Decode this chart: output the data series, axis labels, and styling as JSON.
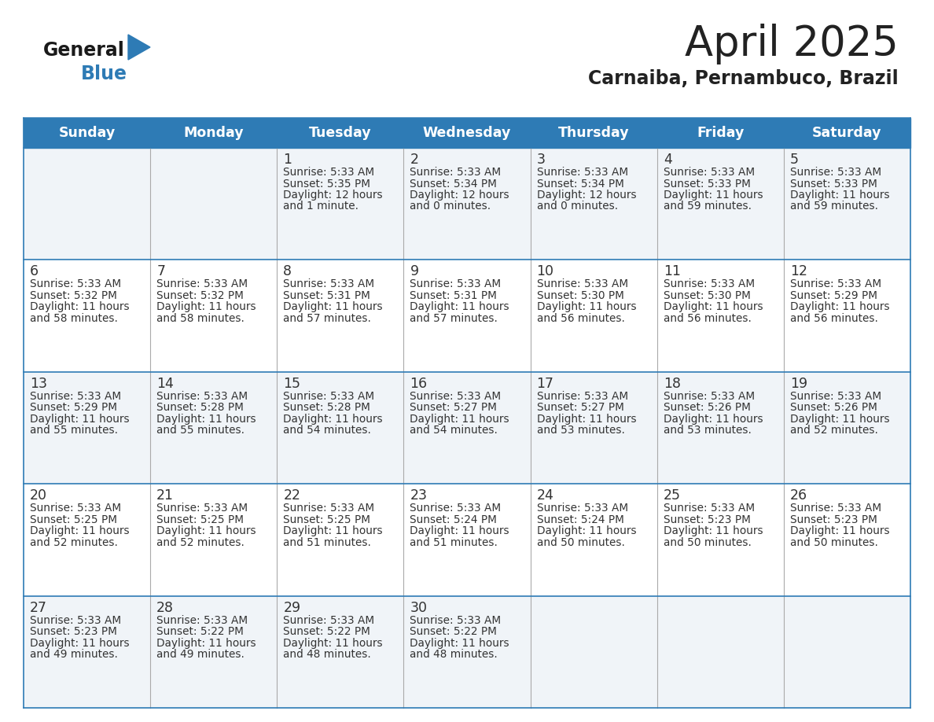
{
  "title": "April 2025",
  "subtitle": "Carnaiba, Pernambuco, Brazil",
  "days_of_week": [
    "Sunday",
    "Monday",
    "Tuesday",
    "Wednesday",
    "Thursday",
    "Friday",
    "Saturday"
  ],
  "header_bg": "#2E7BB5",
  "header_text_color": "#FFFFFF",
  "row_bg_odd": "#F0F4F8",
  "row_bg_even": "#FFFFFF",
  "border_color": "#2E7BB5",
  "sep_color": "#AAAAAA",
  "text_color": "#333333",
  "title_color": "#222222",
  "subtitle_color": "#222222",
  "logo_general_color": "#1a1a1a",
  "logo_blue_color": "#2E7BB5",
  "logo_triangle_color": "#2E7BB5",
  "calendar_data": [
    [
      null,
      null,
      {
        "day": 1,
        "sunrise": "5:33 AM",
        "sunset": "5:35 PM",
        "daylight": "12 hours and 1 minute."
      },
      {
        "day": 2,
        "sunrise": "5:33 AM",
        "sunset": "5:34 PM",
        "daylight": "12 hours and 0 minutes."
      },
      {
        "day": 3,
        "sunrise": "5:33 AM",
        "sunset": "5:34 PM",
        "daylight": "12 hours and 0 minutes."
      },
      {
        "day": 4,
        "sunrise": "5:33 AM",
        "sunset": "5:33 PM",
        "daylight": "11 hours and 59 minutes."
      },
      {
        "day": 5,
        "sunrise": "5:33 AM",
        "sunset": "5:33 PM",
        "daylight": "11 hours and 59 minutes."
      }
    ],
    [
      {
        "day": 6,
        "sunrise": "5:33 AM",
        "sunset": "5:32 PM",
        "daylight": "11 hours and 58 minutes."
      },
      {
        "day": 7,
        "sunrise": "5:33 AM",
        "sunset": "5:32 PM",
        "daylight": "11 hours and 58 minutes."
      },
      {
        "day": 8,
        "sunrise": "5:33 AM",
        "sunset": "5:31 PM",
        "daylight": "11 hours and 57 minutes."
      },
      {
        "day": 9,
        "sunrise": "5:33 AM",
        "sunset": "5:31 PM",
        "daylight": "11 hours and 57 minutes."
      },
      {
        "day": 10,
        "sunrise": "5:33 AM",
        "sunset": "5:30 PM",
        "daylight": "11 hours and 56 minutes."
      },
      {
        "day": 11,
        "sunrise": "5:33 AM",
        "sunset": "5:30 PM",
        "daylight": "11 hours and 56 minutes."
      },
      {
        "day": 12,
        "sunrise": "5:33 AM",
        "sunset": "5:29 PM",
        "daylight": "11 hours and 56 minutes."
      }
    ],
    [
      {
        "day": 13,
        "sunrise": "5:33 AM",
        "sunset": "5:29 PM",
        "daylight": "11 hours and 55 minutes."
      },
      {
        "day": 14,
        "sunrise": "5:33 AM",
        "sunset": "5:28 PM",
        "daylight": "11 hours and 55 minutes."
      },
      {
        "day": 15,
        "sunrise": "5:33 AM",
        "sunset": "5:28 PM",
        "daylight": "11 hours and 54 minutes."
      },
      {
        "day": 16,
        "sunrise": "5:33 AM",
        "sunset": "5:27 PM",
        "daylight": "11 hours and 54 minutes."
      },
      {
        "day": 17,
        "sunrise": "5:33 AM",
        "sunset": "5:27 PM",
        "daylight": "11 hours and 53 minutes."
      },
      {
        "day": 18,
        "sunrise": "5:33 AM",
        "sunset": "5:26 PM",
        "daylight": "11 hours and 53 minutes."
      },
      {
        "day": 19,
        "sunrise": "5:33 AM",
        "sunset": "5:26 PM",
        "daylight": "11 hours and 52 minutes."
      }
    ],
    [
      {
        "day": 20,
        "sunrise": "5:33 AM",
        "sunset": "5:25 PM",
        "daylight": "11 hours and 52 minutes."
      },
      {
        "day": 21,
        "sunrise": "5:33 AM",
        "sunset": "5:25 PM",
        "daylight": "11 hours and 52 minutes."
      },
      {
        "day": 22,
        "sunrise": "5:33 AM",
        "sunset": "5:25 PM",
        "daylight": "11 hours and 51 minutes."
      },
      {
        "day": 23,
        "sunrise": "5:33 AM",
        "sunset": "5:24 PM",
        "daylight": "11 hours and 51 minutes."
      },
      {
        "day": 24,
        "sunrise": "5:33 AM",
        "sunset": "5:24 PM",
        "daylight": "11 hours and 50 minutes."
      },
      {
        "day": 25,
        "sunrise": "5:33 AM",
        "sunset": "5:23 PM",
        "daylight": "11 hours and 50 minutes."
      },
      {
        "day": 26,
        "sunrise": "5:33 AM",
        "sunset": "5:23 PM",
        "daylight": "11 hours and 50 minutes."
      }
    ],
    [
      {
        "day": 27,
        "sunrise": "5:33 AM",
        "sunset": "5:23 PM",
        "daylight": "11 hours and 49 minutes."
      },
      {
        "day": 28,
        "sunrise": "5:33 AM",
        "sunset": "5:22 PM",
        "daylight": "11 hours and 49 minutes."
      },
      {
        "day": 29,
        "sunrise": "5:33 AM",
        "sunset": "5:22 PM",
        "daylight": "11 hours and 48 minutes."
      },
      {
        "day": 30,
        "sunrise": "5:33 AM",
        "sunset": "5:22 PM",
        "daylight": "11 hours and 48 minutes."
      },
      null,
      null,
      null
    ]
  ]
}
